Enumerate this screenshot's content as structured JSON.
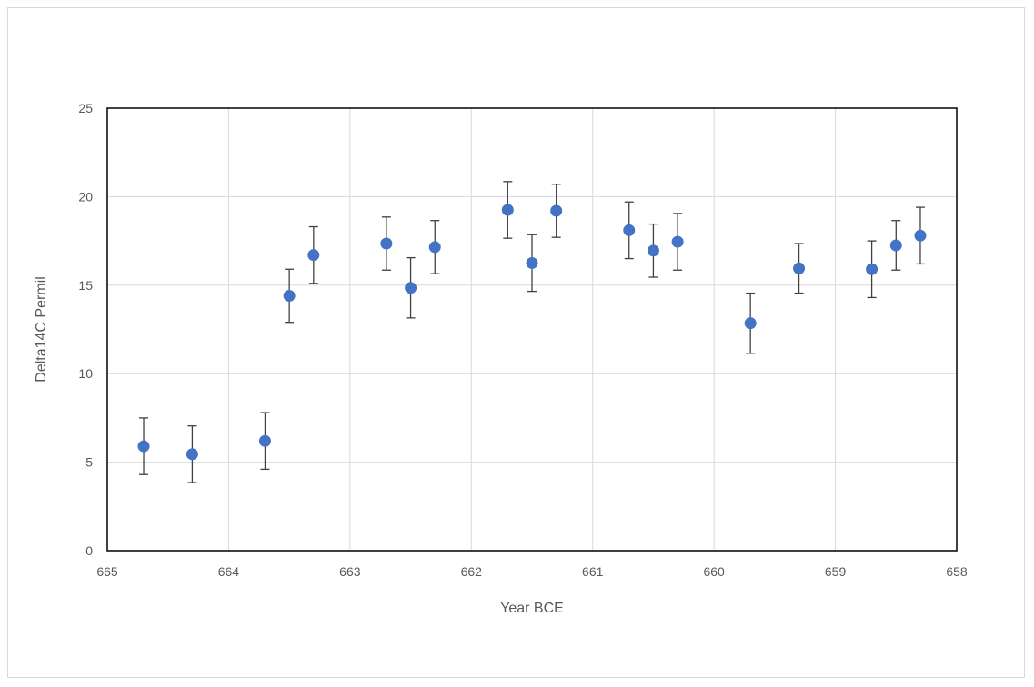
{
  "chart_data": {
    "type": "scatter",
    "title": "",
    "xlabel": "Year BCE",
    "ylabel": "Delta14C Permil",
    "x_axis_reversed": true,
    "xlim": [
      665,
      658
    ],
    "ylim": [
      0,
      25
    ],
    "x_ticks": [
      "665",
      "664",
      "663",
      "662",
      "661",
      "660",
      "659",
      "658"
    ],
    "y_ticks": [
      "0",
      "5",
      "10",
      "15",
      "20",
      "25"
    ],
    "grid": true,
    "legend": "none",
    "marker_color": "#4472C4",
    "error_bar_color": "#404040",
    "points": [
      {
        "x": 664.7,
        "y": 5.9,
        "err": 1.6
      },
      {
        "x": 664.3,
        "y": 5.45,
        "err": 1.6
      },
      {
        "x": 663.7,
        "y": 6.2,
        "err": 1.6
      },
      {
        "x": 663.5,
        "y": 14.4,
        "err": 1.5
      },
      {
        "x": 663.3,
        "y": 16.7,
        "err": 1.6
      },
      {
        "x": 662.7,
        "y": 17.35,
        "err": 1.5
      },
      {
        "x": 662.5,
        "y": 14.85,
        "err": 1.7
      },
      {
        "x": 662.3,
        "y": 17.15,
        "err": 1.5
      },
      {
        "x": 661.7,
        "y": 19.25,
        "err": 1.6
      },
      {
        "x": 661.5,
        "y": 16.25,
        "err": 1.6
      },
      {
        "x": 661.3,
        "y": 19.2,
        "err": 1.5
      },
      {
        "x": 660.7,
        "y": 18.1,
        "err": 1.6
      },
      {
        "x": 660.5,
        "y": 16.95,
        "err": 1.5
      },
      {
        "x": 660.3,
        "y": 17.45,
        "err": 1.6
      },
      {
        "x": 659.7,
        "y": 12.85,
        "err": 1.7
      },
      {
        "x": 659.3,
        "y": 15.95,
        "err": 1.4
      },
      {
        "x": 658.7,
        "y": 15.9,
        "err": 1.6
      },
      {
        "x": 658.5,
        "y": 17.25,
        "err": 1.4
      },
      {
        "x": 658.3,
        "y": 17.8,
        "err": 1.6
      }
    ]
  }
}
